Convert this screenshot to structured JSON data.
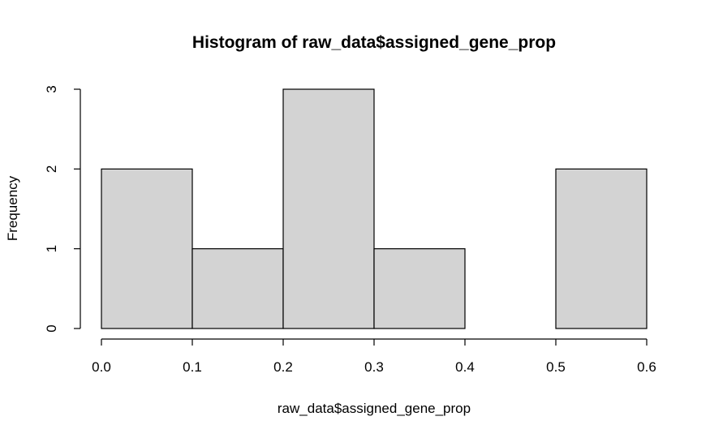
{
  "chart_data": {
    "type": "bar",
    "title": "Histogram of raw_data$assigned_gene_prop",
    "xlabel": "raw_data$assigned_gene_prop",
    "ylabel": "Frequency",
    "bins": [
      {
        "start": 0.0,
        "end": 0.1,
        "count": 2
      },
      {
        "start": 0.1,
        "end": 0.2,
        "count": 1
      },
      {
        "start": 0.2,
        "end": 0.3,
        "count": 3
      },
      {
        "start": 0.3,
        "end": 0.4,
        "count": 1
      },
      {
        "start": 0.4,
        "end": 0.5,
        "count": 0
      },
      {
        "start": 0.5,
        "end": 0.6,
        "count": 2
      }
    ],
    "xlim": [
      0.0,
      0.6
    ],
    "ylim": [
      0,
      3
    ],
    "x_ticks": [
      "0.0",
      "0.1",
      "0.2",
      "0.3",
      "0.4",
      "0.5",
      "0.6"
    ],
    "y_ticks": [
      "0",
      "1",
      "2",
      "3"
    ],
    "grid": false,
    "bar_color": "#d3d3d3",
    "border_color": "#000000"
  }
}
